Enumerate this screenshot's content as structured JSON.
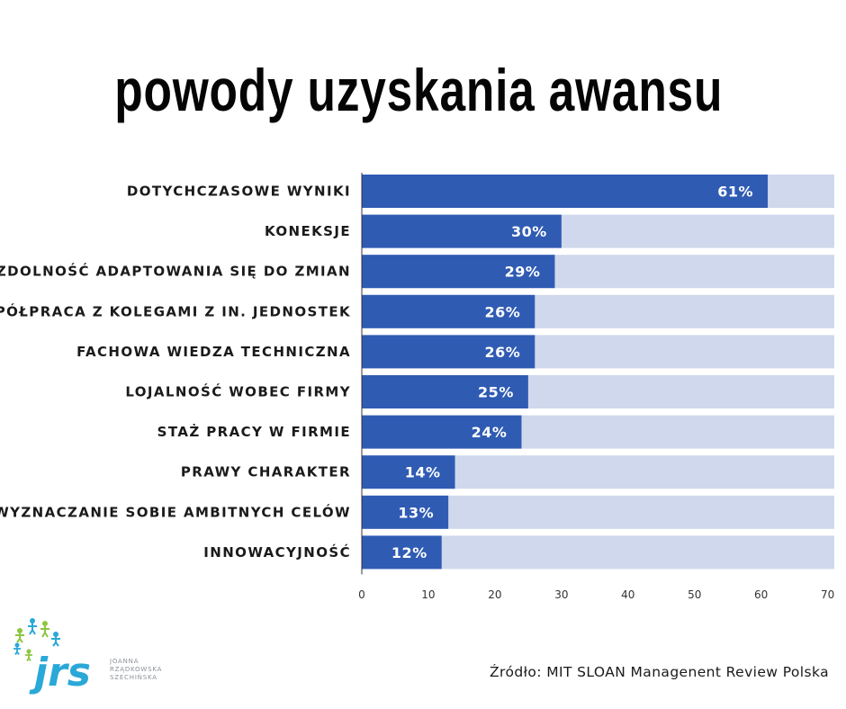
{
  "title": "powody uzyskania awansu",
  "chart_data": {
    "type": "bar",
    "orientation": "horizontal",
    "categories": [
      "DOTYCHCZASOWE WYNIKI",
      "KONEKSJE",
      "ZDOLNOŚĆ ADAPTOWANIA SIĘ DO ZMIAN",
      "WSPÓŁPRACA Z KOLEGAMI Z IN. JEDNOSTEK",
      "FACHOWA WIEDZA TECHNICZNA",
      "LOJALNOŚĆ WOBEC FIRMY",
      "STAŻ PRACY W FIRMIE",
      "PRAWY CHARAKTER",
      "WYZNACZANIE SOBIE AMBITNYCH CELÓW",
      "INNOWACYJNOŚĆ"
    ],
    "values": [
      61,
      30,
      29,
      26,
      26,
      25,
      24,
      14,
      13,
      12
    ],
    "value_labels": [
      "61%",
      "30%",
      "29%",
      "26%",
      "26%",
      "25%",
      "24%",
      "14%",
      "13%",
      "12%"
    ],
    "xlim": [
      0,
      71
    ],
    "xticks": [
      "0",
      "10",
      "20",
      "30",
      "40",
      "50",
      "60",
      "70"
    ],
    "xtick_values": [
      0,
      10,
      20,
      30,
      40,
      50,
      60,
      70
    ],
    "grid": false,
    "colors": {
      "bar": "#2f5bb3",
      "track": "#cfd8ec",
      "axis": "#333333"
    }
  },
  "logo": {
    "letters": "jrs",
    "subtitle_lines": [
      "JOANNA",
      "RZĄDKOWSKA",
      "SZECHIŃSKA"
    ],
    "colors": {
      "letters": "#2aa8d8",
      "figure_blue": "#2aa8d8",
      "figure_green": "#8cc63f"
    }
  },
  "source": "Źródło: MIT SLOAN Managenent Review Polska"
}
